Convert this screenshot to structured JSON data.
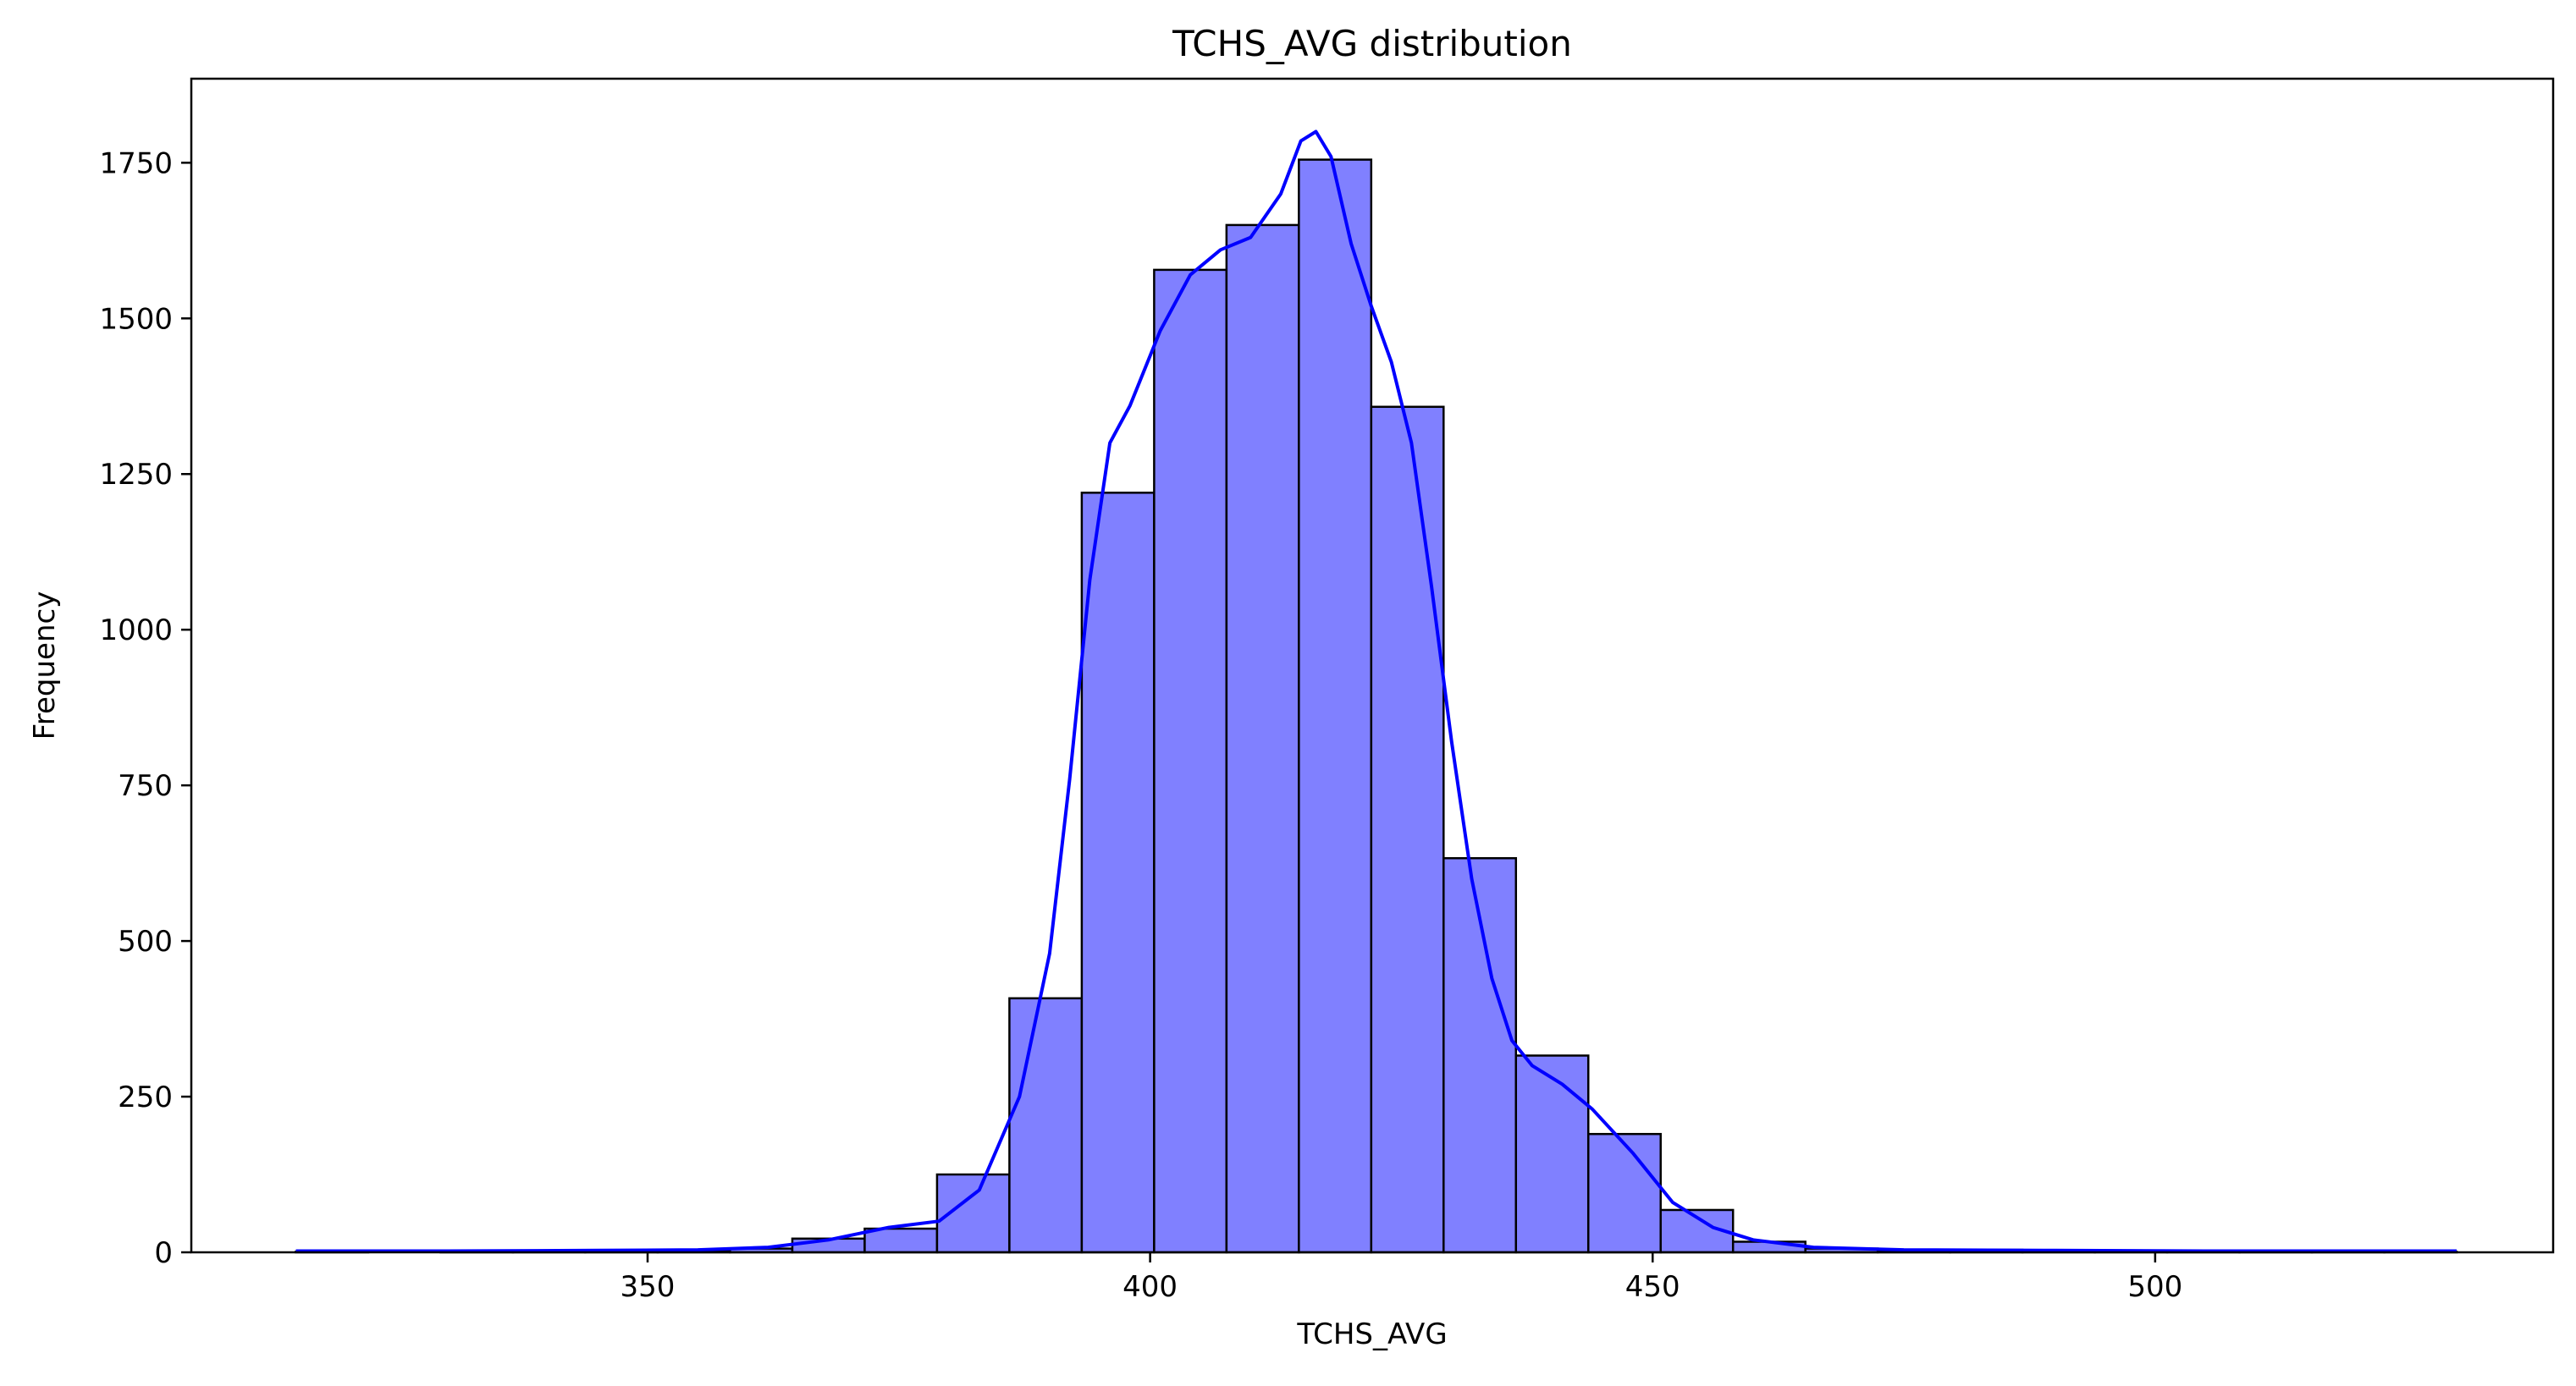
{
  "chart_data": {
    "type": "histogram",
    "title": "TCHS_AVG distribution",
    "xlabel": "TCHS_AVG",
    "ylabel": "Frequency",
    "xlim": [
      304.6,
      539.6
    ],
    "ylim": [
      0,
      1885
    ],
    "xticks": [
      350,
      400,
      450,
      500
    ],
    "yticks": [
      0,
      250,
      500,
      750,
      1000,
      1250,
      1500,
      1750
    ],
    "bar_color": "#8080ff",
    "edge_color": "#000000",
    "kde_color": "#0000ff",
    "grid": false,
    "bins": [
      {
        "x0": 315.0,
        "x1": 322.2,
        "count": 1
      },
      {
        "x0": 322.2,
        "x1": 329.4,
        "count": 0
      },
      {
        "x0": 329.4,
        "x1": 336.6,
        "count": 1
      },
      {
        "x0": 336.6,
        "x1": 343.8,
        "count": 2
      },
      {
        "x0": 343.8,
        "x1": 351.0,
        "count": 1
      },
      {
        "x0": 351.0,
        "x1": 358.2,
        "count": 2
      },
      {
        "x0": 358.2,
        "x1": 364.4,
        "count": 6
      },
      {
        "x0": 364.4,
        "x1": 371.6,
        "count": 22
      },
      {
        "x0": 371.6,
        "x1": 378.8,
        "count": 38
      },
      {
        "x0": 378.8,
        "x1": 386.0,
        "count": 125
      },
      {
        "x0": 386.0,
        "x1": 393.2,
        "count": 408
      },
      {
        "x0": 393.2,
        "x1": 400.4,
        "count": 1220
      },
      {
        "x0": 400.4,
        "x1": 407.6,
        "count": 1578
      },
      {
        "x0": 407.6,
        "x1": 414.8,
        "count": 1650
      },
      {
        "x0": 414.8,
        "x1": 422.0,
        "count": 1755
      },
      {
        "x0": 422.0,
        "x1": 429.2,
        "count": 1358
      },
      {
        "x0": 429.2,
        "x1": 436.4,
        "count": 633
      },
      {
        "x0": 436.4,
        "x1": 443.6,
        "count": 316
      },
      {
        "x0": 443.6,
        "x1": 450.8,
        "count": 190
      },
      {
        "x0": 450.8,
        "x1": 458.0,
        "count": 68
      },
      {
        "x0": 458.0,
        "x1": 465.2,
        "count": 17
      },
      {
        "x0": 465.2,
        "x1": 472.4,
        "count": 6
      },
      {
        "x0": 472.4,
        "x1": 479.6,
        "count": 3
      },
      {
        "x0": 479.6,
        "x1": 486.8,
        "count": 4
      },
      {
        "x0": 486.8,
        "x1": 494.0,
        "count": 2
      },
      {
        "x0": 494.0,
        "x1": 501.2,
        "count": 1
      },
      {
        "x0": 501.2,
        "x1": 508.4,
        "count": 2
      },
      {
        "x0": 508.4,
        "x1": 515.6,
        "count": 1
      },
      {
        "x0": 515.6,
        "x1": 522.8,
        "count": 2
      },
      {
        "x0": 522.8,
        "x1": 530.0,
        "count": 1
      }
    ],
    "kde": {
      "x": [
        315,
        330,
        345,
        355,
        362,
        368,
        374,
        379,
        383,
        387,
        390,
        392,
        394,
        396,
        398,
        401,
        404,
        407,
        410,
        413,
        415,
        416.5,
        418,
        420,
        422,
        424,
        426,
        428,
        430,
        432,
        434,
        436,
        438,
        441,
        444,
        448,
        452,
        456,
        460,
        466,
        475,
        490,
        505,
        520,
        530
      ],
      "y": [
        2,
        2,
        3,
        4,
        8,
        20,
        40,
        50,
        100,
        250,
        480,
        760,
        1080,
        1300,
        1360,
        1480,
        1570,
        1610,
        1630,
        1700,
        1785,
        1800,
        1760,
        1620,
        1520,
        1430,
        1300,
        1070,
        820,
        600,
        440,
        340,
        300,
        270,
        230,
        160,
        80,
        40,
        20,
        8,
        4,
        3,
        2,
        2,
        2
      ]
    }
  }
}
